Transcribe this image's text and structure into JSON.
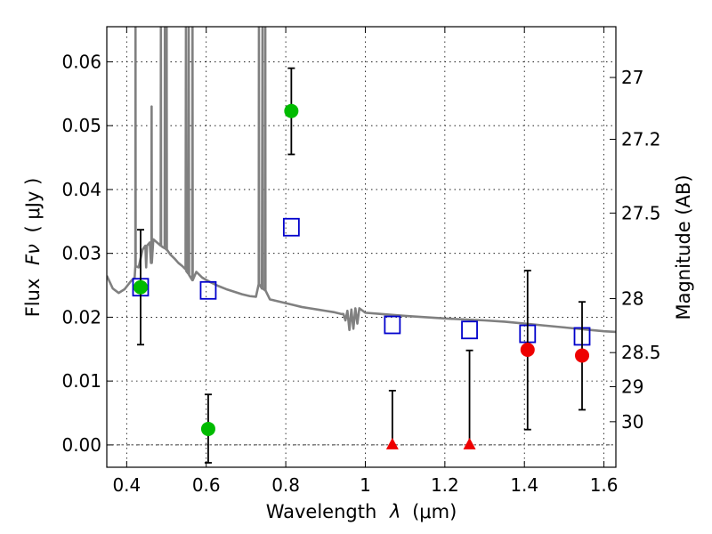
{
  "chart_data": {
    "type": "scatter",
    "xlabel_text": "Wavelength",
    "xlabel_symbol": "λ",
    "xlabel_unit": "(μm)",
    "ylabel_text": "Flux",
    "ylabel_symbol": "Fν",
    "ylabel_unit": "( μJy )",
    "y2label": "Magnitude (AB)",
    "xlim": [
      0.35,
      1.63
    ],
    "ylim": [
      -0.0035,
      0.0655
    ],
    "grid": true,
    "grid_style": "dotted",
    "xticks": [
      0.4,
      0.6,
      0.8,
      1.0,
      1.2,
      1.4,
      1.6
    ],
    "xtick_labels": [
      "0.4",
      "0.6",
      "0.8",
      "1",
      "1.2",
      "1.4",
      "1.6"
    ],
    "yticks": [
      0.0,
      0.01,
      0.02,
      0.03,
      0.04,
      0.05,
      0.06
    ],
    "ytick_labels": [
      "0.00",
      "0.01",
      "0.02",
      "0.03",
      "0.04",
      "0.05",
      "0.06"
    ],
    "y2ticks": [
      {
        "label": "27",
        "mag": 27.0
      },
      {
        "label": "27.2",
        "mag": 27.2
      },
      {
        "label": "27.5",
        "mag": 27.5
      },
      {
        "label": "28",
        "mag": 28.0
      },
      {
        "label": "28.5",
        "mag": 28.5
      },
      {
        "label": "29",
        "mag": 29.0
      },
      {
        "label": "30",
        "mag": 30.0
      }
    ],
    "series": [
      {
        "kind": "spectrum",
        "color": "#808080",
        "points": [
          [
            0.35,
            0.0265
          ],
          [
            0.365,
            0.0245
          ],
          [
            0.38,
            0.0238
          ],
          [
            0.395,
            0.0244
          ],
          [
            0.41,
            0.0256
          ],
          [
            0.42,
            0.0262
          ],
          [
            0.4218,
            0.028
          ],
          [
            0.4222,
            0.0655
          ],
          [
            0.4226,
            0.028
          ],
          [
            0.43,
            0.0278
          ],
          [
            0.44,
            0.0306
          ],
          [
            0.447,
            0.0312
          ],
          [
            0.449,
            0.0278
          ],
          [
            0.451,
            0.0312
          ],
          [
            0.458,
            0.0317
          ],
          [
            0.461,
            0.0285
          ],
          [
            0.4622,
            0.0285
          ],
          [
            0.4627,
            0.053
          ],
          [
            0.4632,
            0.0285
          ],
          [
            0.467,
            0.0322
          ],
          [
            0.48,
            0.0315
          ],
          [
            0.4855,
            0.0312
          ],
          [
            0.486,
            0.0655
          ],
          [
            0.4865,
            0.0312
          ],
          [
            0.49,
            0.031
          ],
          [
            0.4955,
            0.0308
          ],
          [
            0.496,
            0.0655
          ],
          [
            0.4965,
            0.0308
          ],
          [
            0.5,
            0.0306
          ],
          [
            0.5005,
            0.0655
          ],
          [
            0.501,
            0.0306
          ],
          [
            0.51,
            0.0298
          ],
          [
            0.52,
            0.0292
          ],
          [
            0.53,
            0.0285
          ],
          [
            0.54,
            0.028
          ],
          [
            0.548,
            0.0275
          ],
          [
            0.549,
            0.0655
          ],
          [
            0.55,
            0.0272
          ],
          [
            0.555,
            0.0268
          ],
          [
            0.556,
            0.0655
          ],
          [
            0.557,
            0.0266
          ],
          [
            0.565,
            0.0258
          ],
          [
            0.5655,
            0.0655
          ],
          [
            0.566,
            0.0258
          ],
          [
            0.575,
            0.0271
          ],
          [
            0.59,
            0.0262
          ],
          [
            0.61,
            0.0255
          ],
          [
            0.63,
            0.0249
          ],
          [
            0.65,
            0.0244
          ],
          [
            0.67,
            0.024
          ],
          [
            0.69,
            0.0236
          ],
          [
            0.71,
            0.0233
          ],
          [
            0.725,
            0.0232
          ],
          [
            0.732,
            0.0252
          ],
          [
            0.7325,
            0.0655
          ],
          [
            0.733,
            0.0252
          ],
          [
            0.74,
            0.0245
          ],
          [
            0.7415,
            0.0655
          ],
          [
            0.742,
            0.0245
          ],
          [
            0.748,
            0.0242
          ],
          [
            0.7485,
            0.0655
          ],
          [
            0.749,
            0.0242
          ],
          [
            0.76,
            0.0228
          ],
          [
            0.78,
            0.0225
          ],
          [
            0.8,
            0.0222
          ],
          [
            0.82,
            0.0219
          ],
          [
            0.84,
            0.0216
          ],
          [
            0.86,
            0.0214
          ],
          [
            0.88,
            0.0212
          ],
          [
            0.9,
            0.021
          ],
          [
            0.92,
            0.0208
          ],
          [
            0.94,
            0.0205
          ],
          [
            0.945,
            0.0205
          ],
          [
            0.95,
            0.0195
          ],
          [
            0.955,
            0.021
          ],
          [
            0.96,
            0.018
          ],
          [
            0.965,
            0.0212
          ],
          [
            0.97,
            0.0182
          ],
          [
            0.975,
            0.0214
          ],
          [
            0.98,
            0.019
          ],
          [
            0.985,
            0.0214
          ],
          [
            1.0,
            0.0207
          ],
          [
            1.04,
            0.0205
          ],
          [
            1.1,
            0.0202
          ],
          [
            1.2,
            0.0198
          ],
          [
            1.3,
            0.0195
          ],
          [
            1.35,
            0.0193
          ],
          [
            1.4,
            0.019
          ],
          [
            1.45,
            0.0187
          ],
          [
            1.5,
            0.0184
          ],
          [
            1.55,
            0.0181
          ],
          [
            1.6,
            0.0178
          ],
          [
            1.63,
            0.0177
          ]
        ]
      },
      {
        "kind": "model-squares",
        "color": "#0000cc",
        "points": [
          [
            0.435,
            0.0247
          ],
          [
            0.605,
            0.0242
          ],
          [
            0.814,
            0.0341
          ],
          [
            1.068,
            0.0188
          ],
          [
            1.262,
            0.018
          ],
          [
            1.408,
            0.0174
          ],
          [
            1.545,
            0.017
          ]
        ]
      },
      {
        "kind": "green-circles",
        "color": "#00bb00",
        "points": [
          {
            "x": 0.435,
            "y": 0.0247,
            "lo": 0.0157,
            "hi": 0.0337
          },
          {
            "x": 0.605,
            "y": 0.0025,
            "lo": -0.0028,
            "hi": 0.0079
          },
          {
            "x": 0.814,
            "y": 0.0523,
            "lo": 0.0455,
            "hi": 0.059
          }
        ]
      },
      {
        "kind": "red-circles",
        "color": "#ee0000",
        "points": [
          {
            "x": 1.408,
            "y": 0.0149,
            "lo": 0.0024,
            "hi": 0.0273
          },
          {
            "x": 1.545,
            "y": 0.014,
            "lo": 0.0055,
            "hi": 0.0224
          }
        ]
      },
      {
        "kind": "red-triangles",
        "color": "#ee0000",
        "points": [
          {
            "x": 1.068,
            "y": 0.0,
            "lo": 0.0,
            "hi": 0.0085
          },
          {
            "x": 1.262,
            "y": 0.0,
            "lo": 0.0,
            "hi": 0.0148
          }
        ]
      }
    ]
  }
}
